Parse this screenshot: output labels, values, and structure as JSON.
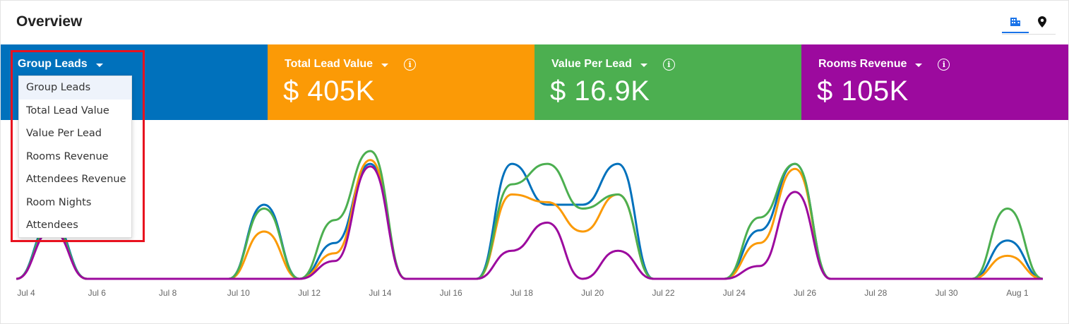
{
  "header": {
    "title": "Overview"
  },
  "view_toggle": {
    "items": [
      {
        "icon": "building-icon",
        "active": true
      },
      {
        "icon": "map-pin-icon",
        "active": false
      }
    ],
    "active_color": "#1a73e8"
  },
  "tiles": [
    {
      "label": "Group Leads",
      "value": "",
      "color": "#0071bc",
      "has_info": false
    },
    {
      "label": "Total Lead Value",
      "value": "$ 405K",
      "color": "#fb9a06",
      "has_info": true
    },
    {
      "label": "Value Per Lead",
      "value": "$ 16.9K",
      "color": "#4caf50",
      "has_info": true
    },
    {
      "label": "Rooms Revenue",
      "value": "$ 105K",
      "color": "#9c0a9e",
      "has_info": true
    }
  ],
  "dropdown": {
    "selected": "Group Leads",
    "options": [
      "Group Leads",
      "Total Lead Value",
      "Value Per Lead",
      "Rooms Revenue",
      "Attendees Revenue",
      "Room Nights",
      "Attendees"
    ]
  },
  "chart_data": {
    "type": "line",
    "x": [
      "Jul 4",
      "Jul 5",
      "Jul 6",
      "Jul 7",
      "Jul 8",
      "Jul 9",
      "Jul 10",
      "Jul 11",
      "Jul 12",
      "Jul 13",
      "Jul 14",
      "Jul 15",
      "Jul 16",
      "Jul 17",
      "Jul 18",
      "Jul 19",
      "Jul 20",
      "Jul 21",
      "Jul 22",
      "Jul 23",
      "Jul 24",
      "Jul 25",
      "Jul 26",
      "Jul 27",
      "Jul 28",
      "Jul 29",
      "Jul 30",
      "Jul 31",
      "Aug 1",
      "Aug 2"
    ],
    "xticks": [
      "Jul 4",
      "Jul 6",
      "Jul 8",
      "Jul 10",
      "Jul 12",
      "Jul 14",
      "Jul 16",
      "Jul 18",
      "Jul 20",
      "Jul 22",
      "Jul 24",
      "Jul 26",
      "Jul 28",
      "Jul 30",
      "Aug 1"
    ],
    "ylim": [
      0,
      100
    ],
    "grid": false,
    "legend": "none",
    "series": [
      {
        "color": "#0071bc",
        "values": [
          0,
          45,
          0,
          0,
          0,
          0,
          0,
          58,
          0,
          28,
          90,
          0,
          0,
          0,
          90,
          58,
          58,
          90,
          0,
          0,
          0,
          38,
          90,
          0,
          0,
          0,
          0,
          0,
          30,
          0
        ]
      },
      {
        "color": "#fb9a06",
        "values": [
          0,
          40,
          0,
          0,
          0,
          0,
          0,
          37,
          0,
          20,
          93,
          0,
          0,
          0,
          66,
          60,
          37,
          66,
          0,
          0,
          0,
          28,
          86,
          0,
          0,
          0,
          0,
          0,
          18,
          0
        ]
      },
      {
        "color": "#4caf50",
        "values": [
          0,
          42,
          0,
          0,
          0,
          0,
          0,
          55,
          0,
          46,
          100,
          0,
          0,
          0,
          74,
          90,
          55,
          66,
          0,
          0,
          0,
          48,
          90,
          0,
          0,
          0,
          0,
          0,
          55,
          0
        ]
      },
      {
        "color": "#9c0a9e",
        "values": [
          0,
          38,
          0,
          0,
          0,
          0,
          0,
          0,
          0,
          14,
          88,
          0,
          0,
          0,
          22,
          44,
          0,
          22,
          0,
          0,
          0,
          10,
          68,
          0,
          0,
          0,
          0,
          0,
          0,
          0
        ]
      }
    ]
  }
}
